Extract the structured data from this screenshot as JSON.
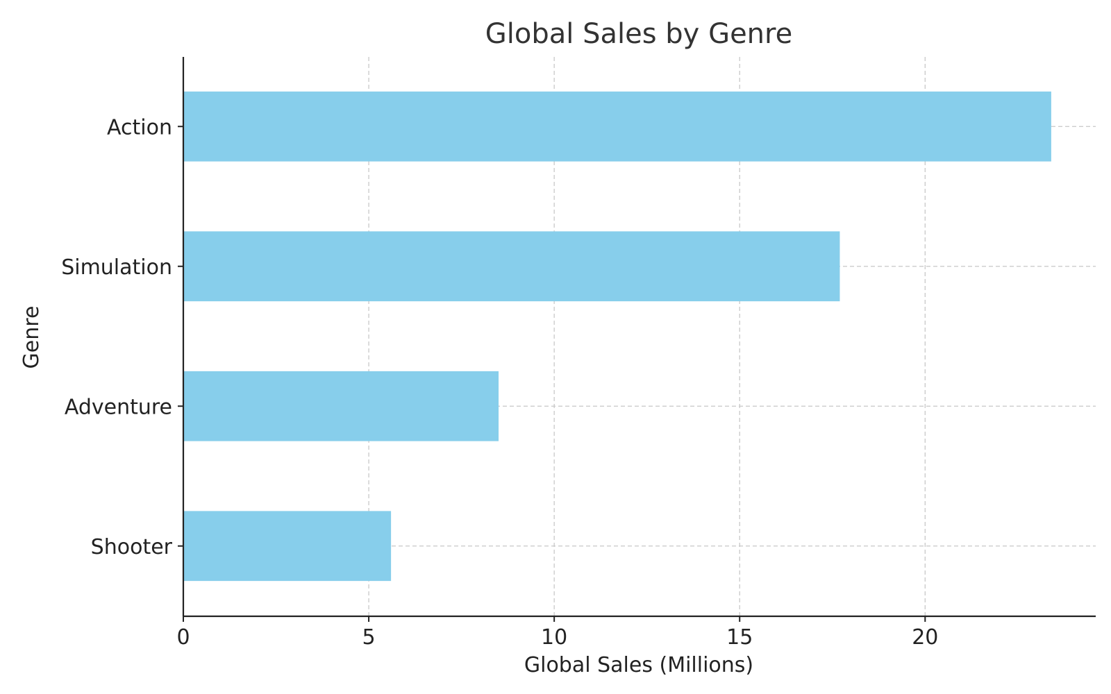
{
  "chart_data": {
    "type": "bar",
    "orientation": "horizontal",
    "title": "Global Sales by Genre",
    "xlabel": "Global Sales (Millions)",
    "ylabel": "Genre",
    "categories": [
      "Action",
      "Simulation",
      "Adventure",
      "Shooter"
    ],
    "values": [
      23.4,
      17.7,
      8.5,
      5.6
    ],
    "xlim": [
      0,
      24.6
    ],
    "xticks": [
      0,
      5,
      10,
      15,
      20
    ],
    "grid": true,
    "bar_color": "#87CEEB"
  }
}
